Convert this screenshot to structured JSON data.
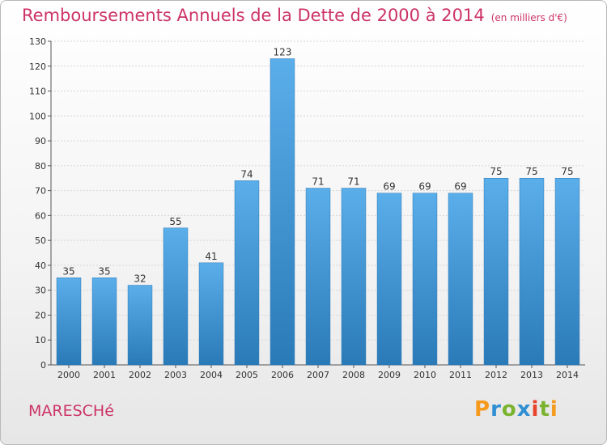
{
  "header": {
    "title": "Remboursements Annuels de la Dette de 2000 à 2014",
    "subtitle": "(en milliers d'€)"
  },
  "commune": "MARESCHé",
  "logo": {
    "text": "Proxiti",
    "letters": [
      "P",
      "r",
      "o",
      "x",
      "i",
      "t",
      "i"
    ]
  },
  "colors": {
    "title": "#cc3366",
    "bar_light": "#5aaeea",
    "bar_dark": "#2a7ab8"
  },
  "chart_data": {
    "type": "bar",
    "title": "Remboursements Annuels de la Dette de 2000 à 2014",
    "subtitle": "(en milliers d'€)",
    "categories": [
      "2000",
      "2001",
      "2002",
      "2003",
      "2004",
      "2005",
      "2006",
      "2007",
      "2008",
      "2009",
      "2010",
      "2011",
      "2012",
      "2013",
      "2014"
    ],
    "values": [
      35,
      35,
      32,
      55,
      41,
      74,
      123,
      71,
      71,
      69,
      69,
      69,
      75,
      75,
      75
    ],
    "ylim": [
      0,
      130
    ],
    "yticks": [
      0,
      10,
      20,
      30,
      40,
      50,
      60,
      70,
      80,
      90,
      100,
      110,
      120,
      130
    ],
    "grid": true,
    "legend": "none"
  }
}
